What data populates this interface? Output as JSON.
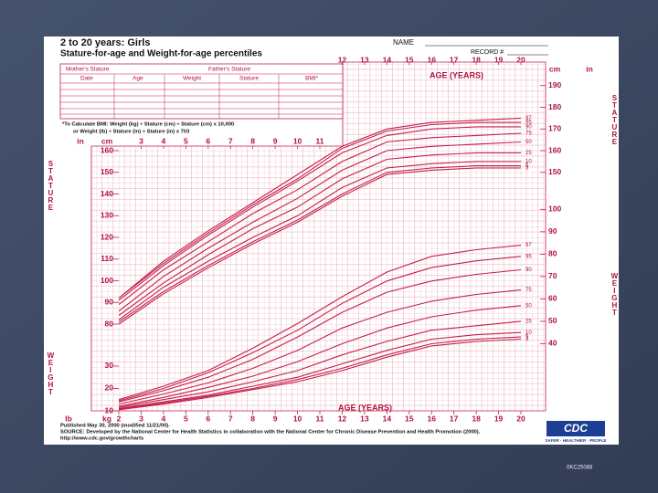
{
  "chart_data": {
    "type": "line",
    "title": "2 to 20 years: Girls",
    "subtitle": "Stature-for-age and Weight-for-age percentiles",
    "name_label": "NAME",
    "record_label": "RECORD #",
    "table": {
      "headers": [
        "Mother's Stature",
        "Father's Stature"
      ],
      "columns": [
        "Date",
        "Age",
        "Weight",
        "Stature",
        "BMI*"
      ]
    },
    "bmi_note": [
      "*To Calculate BMI: Weight (kg) ÷ Stature (cm) ÷ Stature (cm) x 10,000",
      "or Weight (lb) ÷ Stature (in) ÷ Stature (in) x 703"
    ],
    "xlabel": "AGE (YEARS)",
    "y_label": "STATURE",
    "y2_label": "WEIGHT",
    "y_unit": "cm",
    "y_unit_in": "in",
    "y2_unit": "kg",
    "y2_unit_lb": "lb",
    "x": [
      2,
      4,
      6,
      8,
      10,
      12,
      14,
      16,
      18,
      20
    ],
    "xlim": [
      2,
      20
    ],
    "xticks": [
      2,
      3,
      4,
      5,
      6,
      7,
      8,
      9,
      10,
      11,
      12,
      13,
      14,
      15,
      16,
      17,
      18,
      19,
      20
    ],
    "xticks_top": [
      3,
      4,
      5,
      6,
      7,
      8,
      9,
      10,
      11
    ],
    "xticks_top_upper": [
      12,
      13,
      14,
      15,
      16,
      17,
      18,
      19,
      20
    ],
    "ylim": [
      40,
      200
    ],
    "yticks": [
      80,
      90,
      100,
      110,
      120,
      130,
      140,
      150,
      160
    ],
    "yticks_right": [
      150,
      160,
      170,
      180,
      190
    ],
    "y2lim": [
      10,
      165
    ],
    "y2ticks": [
      10,
      20,
      30
    ],
    "y2ticks_right": [
      40,
      50,
      60,
      70,
      80,
      90,
      100
    ],
    "color": "#c41e4a",
    "series": [
      {
        "name": "97",
        "values": [
          92,
          109,
          123,
          136,
          149,
          162,
          170,
          173,
          174,
          175
        ]
      },
      {
        "name": "95",
        "values": [
          92,
          108,
          122,
          135,
          147,
          161,
          169,
          172,
          173,
          173
        ]
      },
      {
        "name": "90",
        "values": [
          91,
          107,
          121,
          134,
          146,
          159,
          167,
          170,
          171,
          171
        ]
      },
      {
        "name": "75",
        "values": [
          89,
          105,
          118,
          131,
          142,
          155,
          164,
          166,
          167,
          168
        ]
      },
      {
        "name": "50",
        "values": [
          86,
          102,
          115,
          127,
          138,
          151,
          160,
          162,
          163,
          164
        ]
      },
      {
        "name": "25",
        "values": [
          84,
          99,
          112,
          124,
          134,
          147,
          156,
          158,
          159,
          159
        ]
      },
      {
        "name": "10",
        "values": [
          82,
          97,
          109,
          120,
          130,
          143,
          152,
          154,
          155,
          155
        ]
      },
      {
        "name": "5",
        "values": [
          81,
          95,
          107,
          118,
          128,
          140,
          150,
          152,
          153,
          153
        ]
      },
      {
        "name": "3",
        "values": [
          80,
          94,
          106,
          117,
          127,
          139,
          149,
          151,
          152,
          152
        ]
      },
      {
        "name": "97",
        "axis": "y2",
        "values": [
          15,
          21,
          28,
          38,
          49,
          61,
          72,
          79,
          82,
          84
        ]
      },
      {
        "name": "95",
        "axis": "y2",
        "values": [
          14.5,
          20,
          27,
          36,
          46,
          58,
          68,
          74,
          77,
          79
        ]
      },
      {
        "name": "90",
        "axis": "y2",
        "values": [
          14,
          19,
          25,
          33,
          43,
          54,
          63,
          68,
          71,
          73
        ]
      },
      {
        "name": "75",
        "axis": "y2",
        "values": [
          13,
          17.5,
          22.5,
          29,
          37,
          47,
          54,
          59,
          62,
          64
        ]
      },
      {
        "name": "50",
        "axis": "y2",
        "values": [
          12,
          16,
          20.5,
          25.5,
          32,
          40,
          47,
          52,
          55,
          57
        ]
      },
      {
        "name": "25",
        "axis": "y2",
        "values": [
          11.5,
          15,
          18.5,
          23,
          28,
          35,
          41,
          46,
          48,
          50
        ]
      },
      {
        "name": "10",
        "axis": "y2",
        "values": [
          11,
          14,
          17,
          21,
          25,
          31,
          37,
          42,
          44,
          45
        ]
      },
      {
        "name": "5",
        "axis": "y2",
        "values": [
          10.8,
          13.5,
          16.5,
          20,
          24,
          29,
          35,
          40,
          42,
          43
        ]
      },
      {
        "name": "3",
        "axis": "y2",
        "values": [
          10.5,
          13,
          16,
          19.5,
          23,
          28,
          34,
          39,
          41,
          42
        ]
      }
    ],
    "footer": [
      "Published May 30, 2000 (modified 11/21/00).",
      "SOURCE: Developed by the National Center for Health Statistics in collaboration with the National Center for Chronic Disease Prevention and Health Promotion (2000).",
      "http://www.cdc.gov/growthcharts"
    ],
    "logo": "CDC",
    "logo_tagline": "SAFER · HEALTHIER · PEOPLE"
  },
  "slide_code": "0KC25088"
}
